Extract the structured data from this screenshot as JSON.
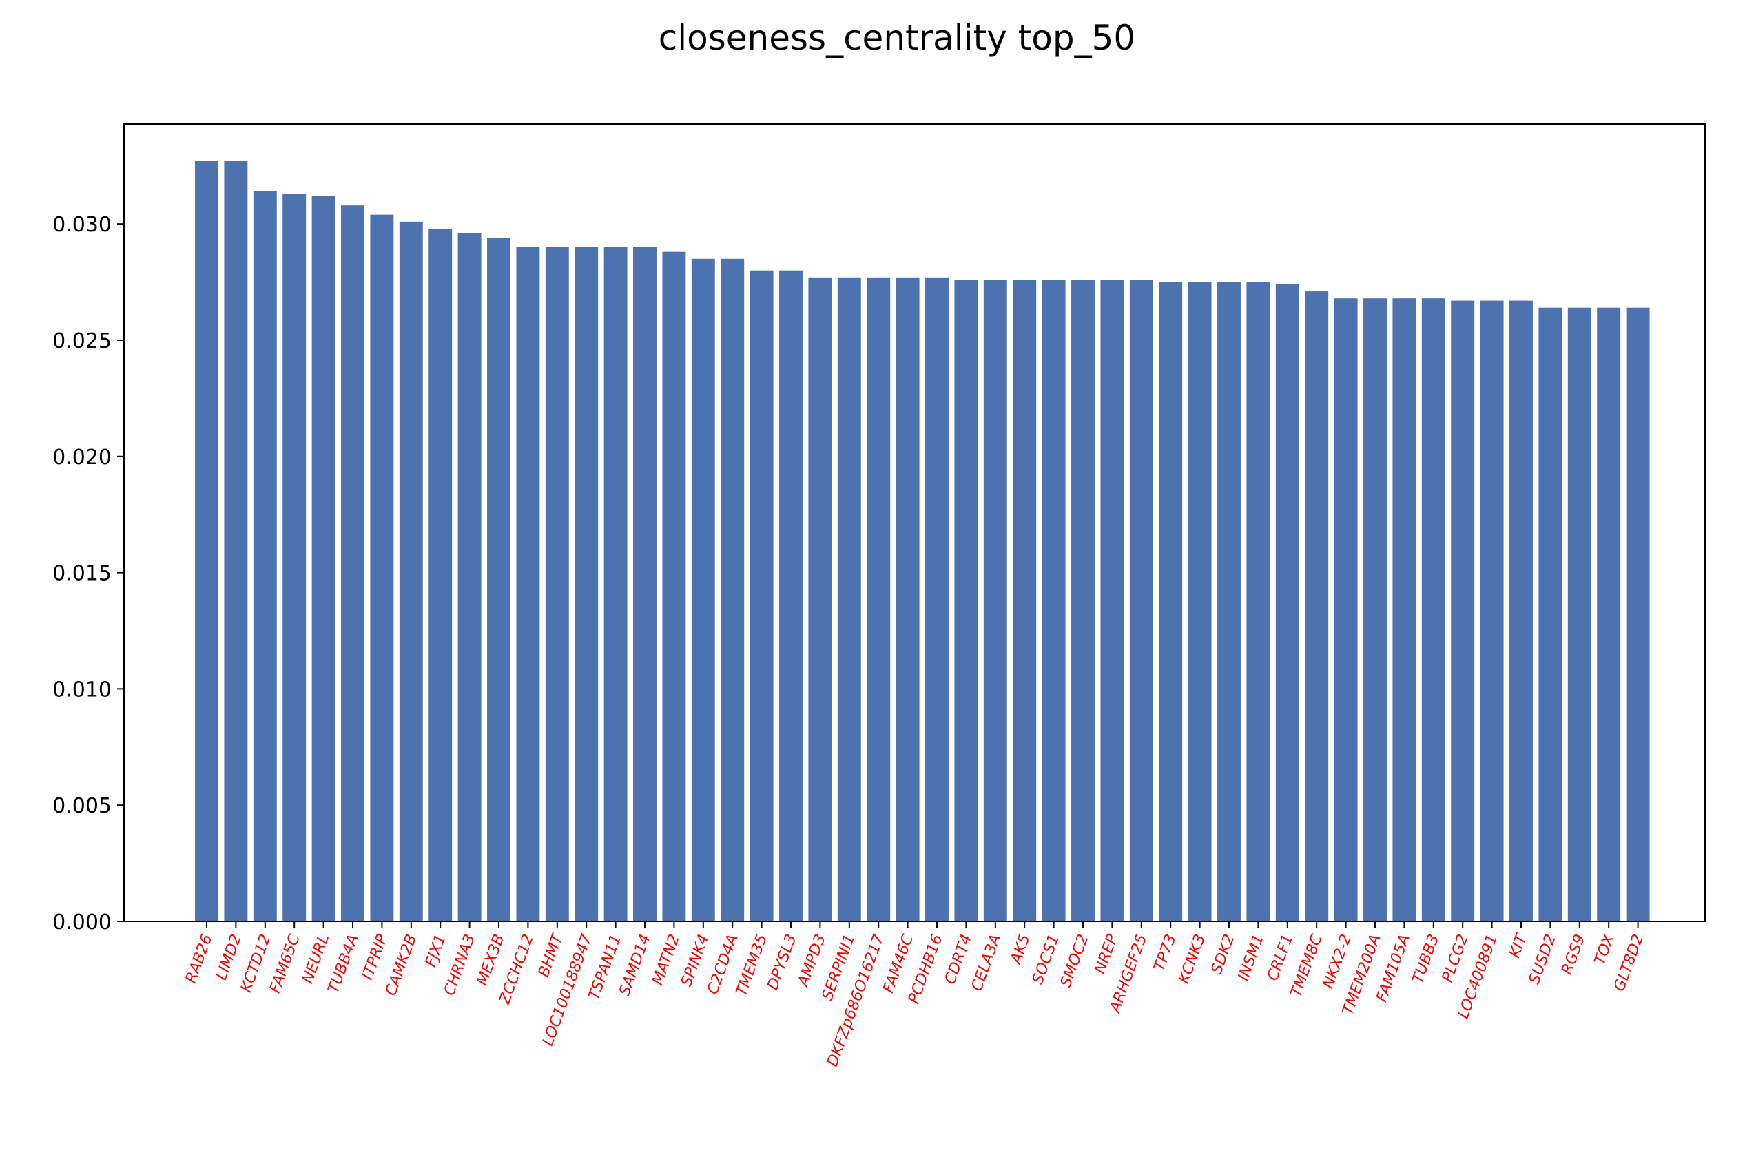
{
  "chart_data": {
    "type": "bar",
    "title": "closeness_centrality top_50",
    "xlabel": "",
    "ylabel": "",
    "ylim": [
      0,
      0.0343
    ],
    "yticks": [
      "0.000",
      "0.005",
      "0.010",
      "0.015",
      "0.020",
      "0.025",
      "0.030"
    ],
    "grid": false,
    "bar_color": "#4c72b0",
    "label_color": "#ff0000",
    "categories": [
      "RAB26",
      "LIMD2",
      "KCTD12",
      "FAM65C",
      "NEURL",
      "TUBB4A",
      "ITPRIP",
      "CAMK2B",
      "FJX1",
      "CHRNA3",
      "MEX3B",
      "ZCCHC12",
      "BHMT",
      "LOC100188947",
      "TSPAN11",
      "SAMD14",
      "MATN2",
      "SPINK4",
      "C2CD4A",
      "TMEM35",
      "DPYSL3",
      "AMPD3",
      "SERPINI1",
      "DKFZp686O16217",
      "FAM46C",
      "PCDHB16",
      "CDRT4",
      "CELA3A",
      "AK5",
      "SOCS1",
      "SMOC2",
      "NREP",
      "ARHGEF25",
      "TP73",
      "KCNK3",
      "SDK2",
      "INSM1",
      "CRLF1",
      "TMEM8C",
      "NKX2-2",
      "TMEM200A",
      "FAM105A",
      "TUBB3",
      "PLCG2",
      "LOC400891",
      "KIT",
      "SUSD2",
      "RGS9",
      "TOX",
      "GLT8D2"
    ],
    "values": [
      0.0327,
      0.0327,
      0.0314,
      0.0313,
      0.0312,
      0.0308,
      0.0304,
      0.0301,
      0.0298,
      0.0296,
      0.0294,
      0.029,
      0.029,
      0.029,
      0.029,
      0.029,
      0.0288,
      0.0285,
      0.0285,
      0.028,
      0.028,
      0.0277,
      0.0277,
      0.0277,
      0.0277,
      0.0277,
      0.0276,
      0.0276,
      0.0276,
      0.0276,
      0.0276,
      0.0276,
      0.0276,
      0.0275,
      0.0275,
      0.0275,
      0.0275,
      0.0274,
      0.0271,
      0.0268,
      0.0268,
      0.0268,
      0.0268,
      0.0267,
      0.0267,
      0.0267,
      0.0264,
      0.0264,
      0.0264,
      0.0264
    ]
  }
}
